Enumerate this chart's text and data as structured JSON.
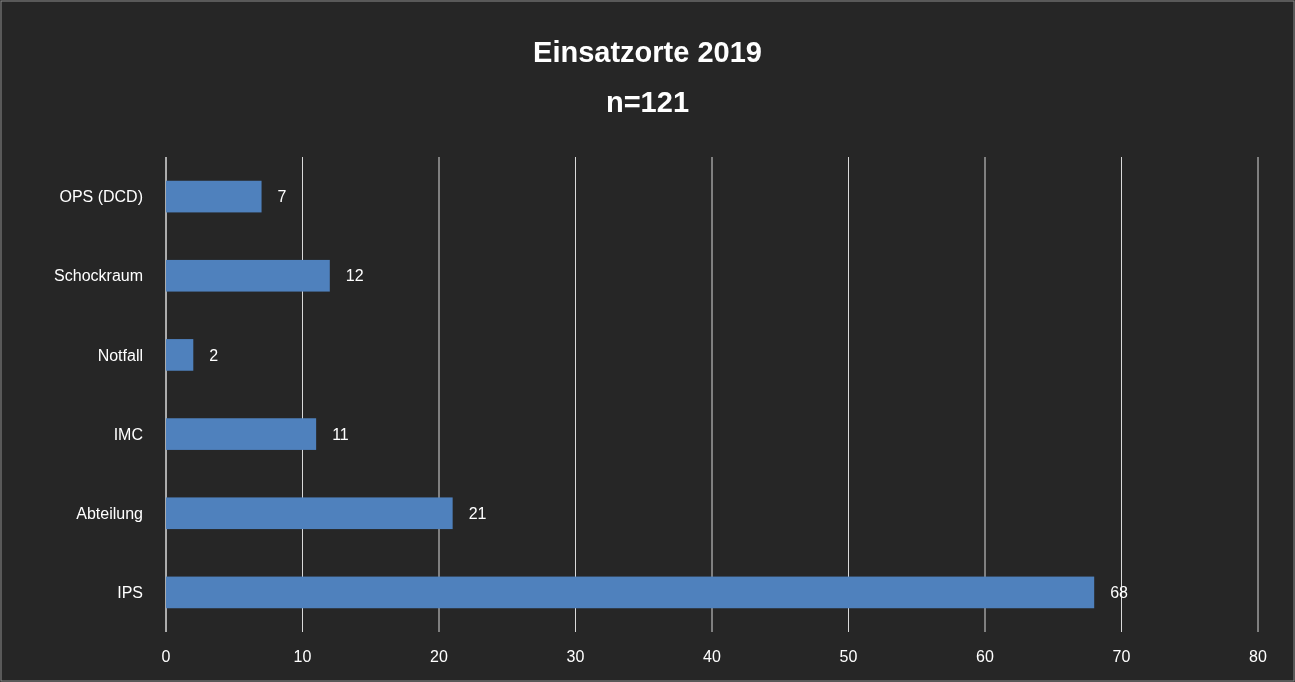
{
  "chart_data": {
    "type": "bar",
    "orientation": "horizontal",
    "title": "Einsatzorte 2019",
    "subtitle": "n=121",
    "categories": [
      "OPS (DCD)",
      "Schockraum",
      "Notfall",
      "IMC",
      "Abteilung",
      "IPS"
    ],
    "values": [
      7,
      12,
      2,
      11,
      21,
      68
    ],
    "color": "#4f81bd",
    "xlim": [
      0,
      80
    ],
    "xticks": [
      0,
      10,
      20,
      30,
      40,
      50,
      60,
      70,
      80
    ],
    "grid": "x",
    "data_labels": true
  }
}
